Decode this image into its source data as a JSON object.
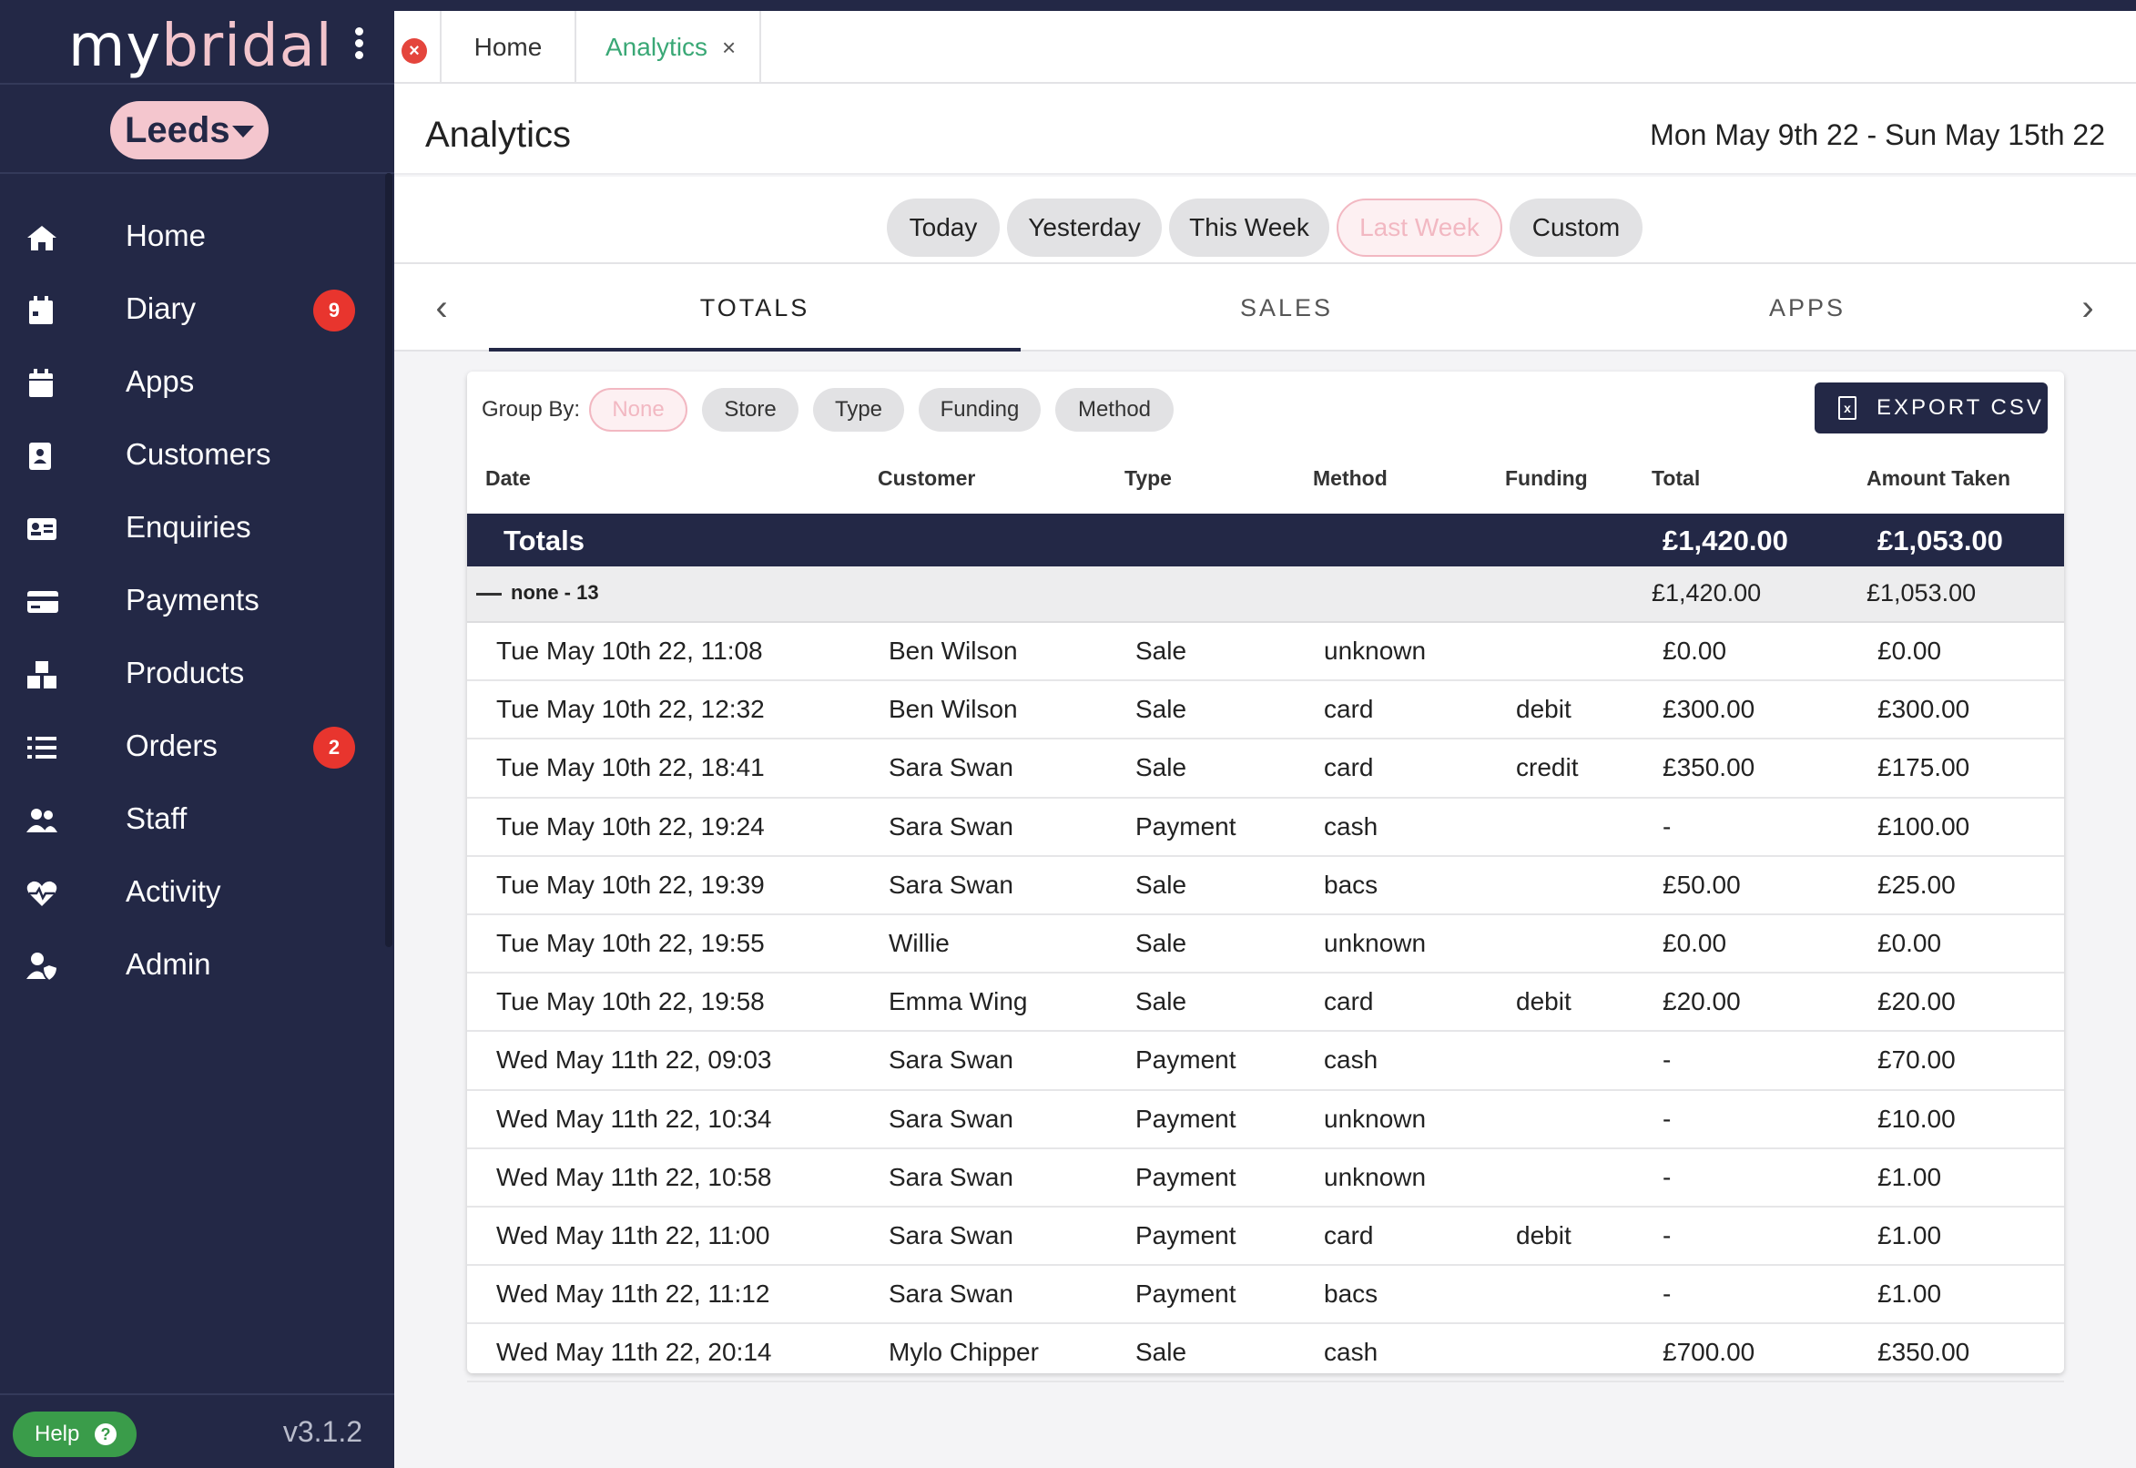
{
  "sidebar": {
    "logo_prefix": "my",
    "logo_accent": "bridal",
    "store": "Leeds",
    "items": [
      {
        "label": "Home",
        "icon": "home-icon"
      },
      {
        "label": "Diary",
        "icon": "calendar-icon",
        "badge": "9"
      },
      {
        "label": "Apps",
        "icon": "calendar-icon"
      },
      {
        "label": "Customers",
        "icon": "contact-book-icon"
      },
      {
        "label": "Enquiries",
        "icon": "id-card-icon"
      },
      {
        "label": "Payments",
        "icon": "credit-card-icon"
      },
      {
        "label": "Products",
        "icon": "boxes-icon"
      },
      {
        "label": "Orders",
        "icon": "list-icon",
        "badge": "2"
      },
      {
        "label": "Staff",
        "icon": "users-icon"
      },
      {
        "label": "Activity",
        "icon": "heartbeat-icon"
      },
      {
        "label": "Admin",
        "icon": "user-shield-icon"
      }
    ],
    "help_label": "Help",
    "version": "v3.1.2"
  },
  "tabs": {
    "home": "Home",
    "analytics": "Analytics",
    "close_glyph": "×"
  },
  "header": {
    "title": "Analytics",
    "date_range": "Mon May 9th 22 - Sun May 15th 22"
  },
  "range_chips": {
    "today": "Today",
    "yesterday": "Yesterday",
    "this_week": "This Week",
    "last_week": "Last Week",
    "custom": "Custom",
    "selected": "Last Week"
  },
  "subtabs": {
    "totals": "TOTALS",
    "sales": "SALES",
    "apps": "APPS",
    "selected": "TOTALS"
  },
  "group_by": {
    "label": "Group By:",
    "none": "None",
    "store": "Store",
    "type": "Type",
    "funding": "Funding",
    "method": "Method",
    "selected": "None"
  },
  "export_label": "EXPORT CSV",
  "table": {
    "columns": {
      "date": "Date",
      "customer": "Customer",
      "type": "Type",
      "method": "Method",
      "funding": "Funding",
      "total": "Total",
      "amount_taken": "Amount Taken"
    },
    "totals": {
      "label": "Totals",
      "total": "£1,420.00",
      "amount_taken": "£1,053.00"
    },
    "group": {
      "label": "none - 13",
      "total": "£1,420.00",
      "amount_taken": "£1,053.00"
    },
    "rows": [
      {
        "date": "Tue May 10th 22, 11:08",
        "customer": "Ben Wilson",
        "type": "Sale",
        "method": "unknown",
        "funding": "",
        "total": "£0.00",
        "amount_taken": "£0.00"
      },
      {
        "date": "Tue May 10th 22, 12:32",
        "customer": "Ben Wilson",
        "type": "Sale",
        "method": "card",
        "funding": "debit",
        "total": "£300.00",
        "amount_taken": "£300.00"
      },
      {
        "date": "Tue May 10th 22, 18:41",
        "customer": "Sara Swan",
        "type": "Sale",
        "method": "card",
        "funding": "credit",
        "total": "£350.00",
        "amount_taken": "£175.00"
      },
      {
        "date": "Tue May 10th 22, 19:24",
        "customer": "Sara Swan",
        "type": "Payment",
        "method": "cash",
        "funding": "",
        "total": "-",
        "amount_taken": "£100.00"
      },
      {
        "date": "Tue May 10th 22, 19:39",
        "customer": "Sara Swan",
        "type": "Sale",
        "method": "bacs",
        "funding": "",
        "total": "£50.00",
        "amount_taken": "£25.00"
      },
      {
        "date": "Tue May 10th 22, 19:55",
        "customer": "Willie",
        "type": "Sale",
        "method": "unknown",
        "funding": "",
        "total": "£0.00",
        "amount_taken": "£0.00"
      },
      {
        "date": "Tue May 10th 22, 19:58",
        "customer": "Emma Wing",
        "type": "Sale",
        "method": "card",
        "funding": "debit",
        "total": "£20.00",
        "amount_taken": "£20.00"
      },
      {
        "date": "Wed May 11th 22, 09:03",
        "customer": "Sara Swan",
        "type": "Payment",
        "method": "cash",
        "funding": "",
        "total": "-",
        "amount_taken": "£70.00"
      },
      {
        "date": "Wed May 11th 22, 10:34",
        "customer": "Sara Swan",
        "type": "Payment",
        "method": "unknown",
        "funding": "",
        "total": "-",
        "amount_taken": "£10.00"
      },
      {
        "date": "Wed May 11th 22, 10:58",
        "customer": "Sara Swan",
        "type": "Payment",
        "method": "unknown",
        "funding": "",
        "total": "-",
        "amount_taken": "£1.00"
      },
      {
        "date": "Wed May 11th 22, 11:00",
        "customer": "Sara Swan",
        "type": "Payment",
        "method": "card",
        "funding": "debit",
        "total": "-",
        "amount_taken": "£1.00"
      },
      {
        "date": "Wed May 11th 22, 11:12",
        "customer": "Sara Swan",
        "type": "Payment",
        "method": "bacs",
        "funding": "",
        "total": "-",
        "amount_taken": "£1.00"
      },
      {
        "date": "Wed May 11th 22, 20:14",
        "customer": "Mylo Chipper",
        "type": "Sale",
        "method": "cash",
        "funding": "",
        "total": "£700.00",
        "amount_taken": "£350.00"
      }
    ]
  },
  "colors": {
    "navy": "#232846",
    "pink": "#f4c6ce",
    "badge_red": "#e8352e",
    "tab_green": "#3aa876",
    "help_green": "#3a9c4a"
  }
}
